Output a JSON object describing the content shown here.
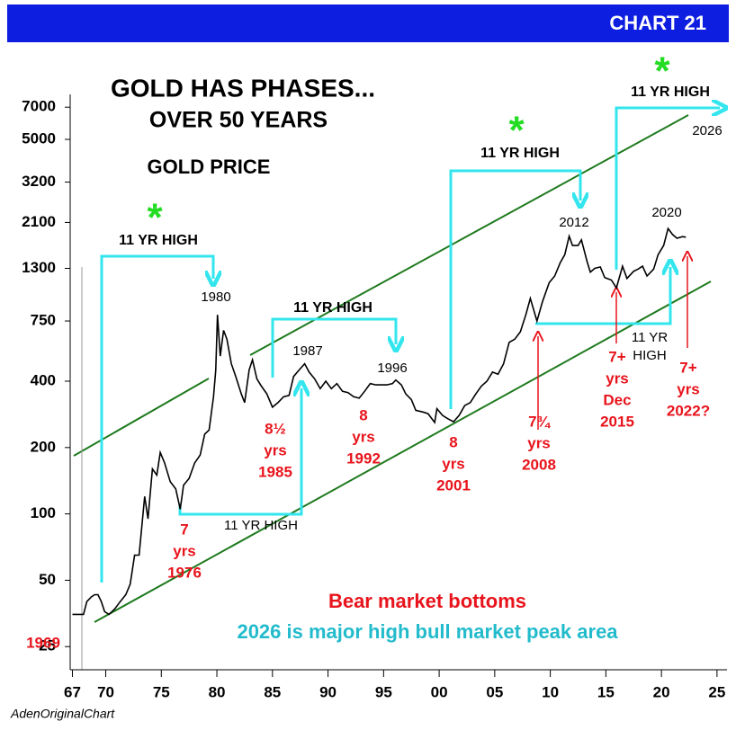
{
  "header": {
    "badge": "CHART 21"
  },
  "chart_data": {
    "type": "line",
    "title": "GOLD HAS PHASES...",
    "subtitle": "OVER 50 YEARS",
    "source": "AdenOriginalChart",
    "log_y": true,
    "xlim": [
      1966.8,
      2025.9
    ],
    "ylim": [
      20,
      8000
    ],
    "xticks": [
      {
        "value": 1967,
        "label": "67"
      },
      {
        "value": 1970,
        "label": "70"
      },
      {
        "value": 1975,
        "label": "75"
      },
      {
        "value": 1980,
        "label": "80"
      },
      {
        "value": 1985,
        "label": "85"
      },
      {
        "value": 1990,
        "label": "90"
      },
      {
        "value": 1995,
        "label": "95"
      },
      {
        "value": 2000,
        "label": "00"
      },
      {
        "value": 2005,
        "label": "05"
      },
      {
        "value": 2010,
        "label": "10"
      },
      {
        "value": 2015,
        "label": "15"
      },
      {
        "value": 2020,
        "label": "20"
      },
      {
        "value": 2025,
        "label": "25"
      }
    ],
    "yticks": [
      25,
      50,
      100,
      200,
      400,
      750,
      1300,
      2100,
      3200,
      5000,
      7000
    ],
    "x": [
      1967.0,
      1967.5,
      1968.0,
      1968.3,
      1968.7,
      1969.0,
      1969.3,
      1969.6,
      1969.9,
      1970.3,
      1970.8,
      1971.3,
      1971.8,
      1972.2,
      1972.6,
      1973.0,
      1973.5,
      1973.8,
      1974.2,
      1974.6,
      1974.9,
      1975.3,
      1975.8,
      1976.3,
      1976.7,
      1977.0,
      1977.5,
      1978.0,
      1978.5,
      1978.9,
      1979.3,
      1979.7,
      1979.9,
      1980.05,
      1980.3,
      1980.6,
      1980.9,
      1981.3,
      1981.7,
      1982.2,
      1982.5,
      1982.9,
      1983.2,
      1983.6,
      1984.0,
      1984.5,
      1985.0,
      1985.5,
      1986.0,
      1986.5,
      1986.9,
      1987.4,
      1987.9,
      1988.3,
      1988.8,
      1989.3,
      1989.8,
      1990.3,
      1990.8,
      1991.3,
      1991.8,
      1992.3,
      1992.8,
      1993.3,
      1993.8,
      1994.3,
      1994.8,
      1995.3,
      1995.8,
      1996.1,
      1996.6,
      1997.0,
      1997.5,
      1997.9,
      1998.5,
      1999.0,
      1999.6,
      1999.8,
      2000.3,
      2000.8,
      2001.3,
      2001.8,
      2002.3,
      2002.8,
      2003.3,
      2003.8,
      2004.3,
      2004.8,
      2005.3,
      2005.8,
      2006.3,
      2006.8,
      2007.3,
      2007.8,
      2008.2,
      2008.8,
      2009.3,
      2009.9,
      2010.4,
      2010.9,
      2011.3,
      2011.7,
      2012.0,
      2012.5,
      2012.8,
      2013.3,
      2013.6,
      2014.0,
      2014.5,
      2014.9,
      2015.5,
      2015.95,
      2016.5,
      2016.9,
      2017.5,
      2017.9,
      2018.3,
      2018.7,
      2019.3,
      2019.7,
      2020.2,
      2020.6,
      2021.0,
      2021.4,
      2021.9,
      2022.2
    ],
    "series": [
      {
        "name": "GOLD PRICE",
        "color": "#000000",
        "values": [
          35,
          35,
          35,
          40,
          42,
          43,
          43,
          40,
          36,
          35,
          37,
          40,
          43,
          48,
          65,
          65,
          120,
          95,
          160,
          150,
          190,
          170,
          140,
          130,
          105,
          135,
          145,
          170,
          185,
          230,
          240,
          340,
          450,
          800,
          520,
          680,
          620,
          480,
          420,
          350,
          320,
          450,
          500,
          410,
          380,
          350,
          305,
          320,
          340,
          345,
          420,
          450,
          480,
          440,
          410,
          370,
          400,
          370,
          390,
          360,
          355,
          340,
          335,
          360,
          390,
          385,
          385,
          385,
          390,
          405,
          385,
          350,
          330,
          295,
          290,
          285,
          260,
          300,
          280,
          270,
          262,
          280,
          310,
          320,
          350,
          380,
          400,
          440,
          430,
          480,
          600,
          620,
          670,
          800,
          950,
          750,
          920,
          1120,
          1200,
          1380,
          1500,
          1820,
          1650,
          1650,
          1750,
          1400,
          1250,
          1300,
          1320,
          1180,
          1150,
          1060,
          1330,
          1170,
          1260,
          1290,
          1330,
          1200,
          1290,
          1500,
          1650,
          1970,
          1850,
          1780,
          1810,
          1800
        ]
      }
    ],
    "annotations": {
      "peak_labels": [
        "1980",
        "1987",
        "1996",
        "2012",
        "2020",
        "2026"
      ],
      "high_labels": [
        "11 YR HIGH",
        "11 YR HIGH",
        "11 YR HIGH",
        "11 YR HIGH"
      ],
      "high_labels_plain": [
        "11 YR HIGH",
        "11 YR",
        "HIGH"
      ],
      "marker": "*",
      "bottoms": [
        [
          "1969"
        ],
        [
          "7",
          "yrs",
          "1976"
        ],
        [
          "8½",
          "yrs",
          "1985"
        ],
        [
          "8",
          "yrs",
          "1992"
        ],
        [
          "8",
          "yrs",
          "2001"
        ],
        [
          "7¾",
          "yrs",
          "2008"
        ],
        [
          "7+",
          "yrs",
          "Dec",
          "2015"
        ],
        [
          "7+",
          "yrs",
          "2022?"
        ]
      ],
      "notes": [
        "Bear market bottoms",
        "2026 is major high bull market peak area"
      ]
    }
  }
}
